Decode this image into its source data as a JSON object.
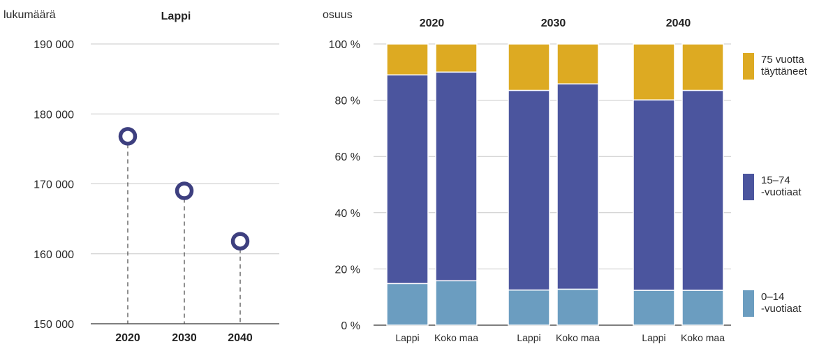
{
  "chart_data": [
    {
      "type": "scatter",
      "title": "Lappi",
      "ylabel": "lukumäärä",
      "ylim": [
        150000,
        190000
      ],
      "yticks": [
        "150 000",
        "160 000",
        "170 000",
        "180 000",
        "190 000"
      ],
      "ytick_values": [
        150000,
        160000,
        170000,
        180000,
        190000
      ],
      "categories": [
        "2020",
        "2030",
        "2040"
      ],
      "values": [
        176800,
        169000,
        161800
      ],
      "marker_color": "#3d3f7f"
    },
    {
      "type": "bar",
      "stacked": true,
      "ylabel": "osuus",
      "ylim": [
        0,
        100
      ],
      "yticks": [
        "0 %",
        "20 %",
        "40 %",
        "60 %",
        "80 %",
        "100 %"
      ],
      "ytick_values": [
        0,
        20,
        40,
        60,
        80,
        100
      ],
      "groups": [
        "2020",
        "2030",
        "2040"
      ],
      "categories": [
        "Lappi",
        "Koko maa"
      ],
      "series": [
        {
          "name": "0–14 -vuotiaat",
          "legend_lines": [
            "0–14",
            "-vuotiaat"
          ],
          "color": "#6b9dc0",
          "values": [
            [
              14.8,
              15.8
            ],
            [
              12.5,
              12.8
            ],
            [
              12.4,
              12.4
            ]
          ]
        },
        {
          "name": "15–74 -vuotiaat",
          "legend_lines": [
            "15–74",
            "-vuotiaat"
          ],
          "color": "#4b559e",
          "values": [
            [
              74.2,
              74.2
            ],
            [
              71.0,
              73.0
            ],
            [
              67.7,
              71.1
            ]
          ]
        },
        {
          "name": "75 vuotta täyttäneet",
          "legend_lines": [
            "75 vuotta",
            "täyttäneet"
          ],
          "color": "#ddaa22",
          "values": [
            [
              11.0,
              10.0
            ],
            [
              16.5,
              14.2
            ],
            [
              19.9,
              16.5
            ]
          ]
        }
      ]
    }
  ]
}
